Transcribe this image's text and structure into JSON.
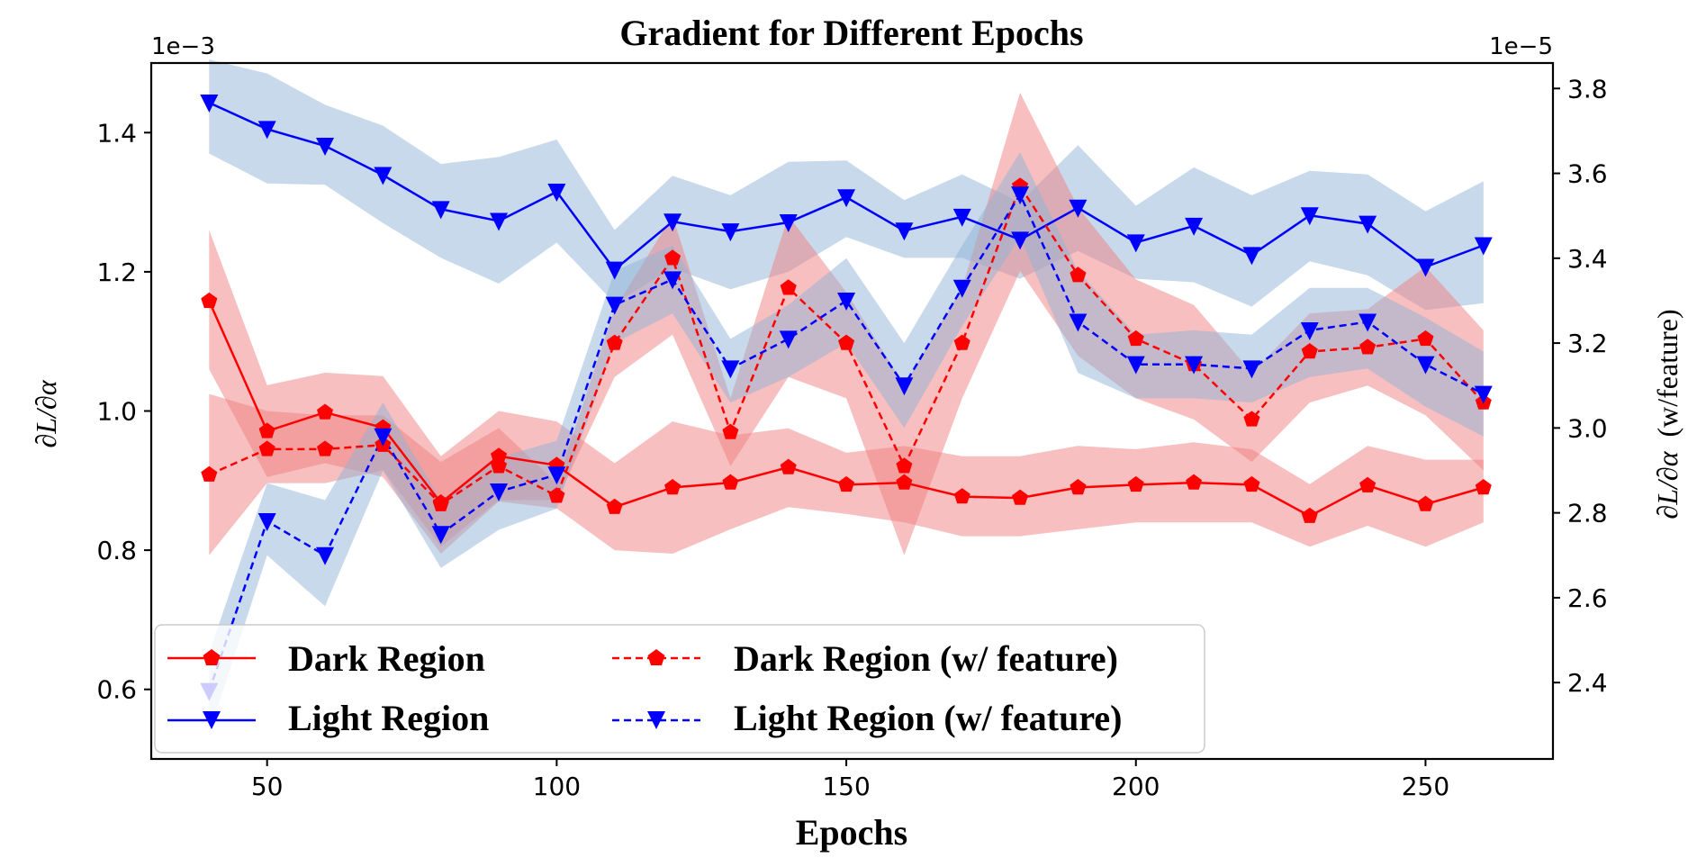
{
  "chart_data": {
    "type": "line",
    "title": "Gradient for Different Epochs",
    "xlabel": "Epochs",
    "ylabel_left": "∂L/∂α",
    "ylabel_right_italic": "∂L/∂α",
    "ylabel_right_suffix": "(w/feature)",
    "left_scale_label": "1e−3",
    "right_scale_label": "1e−5",
    "xlim": [
      30,
      272
    ],
    "ylim_left": [
      0.5,
      1.5
    ],
    "ylim_right": [
      2.22,
      3.86
    ],
    "xticks": [
      50,
      100,
      150,
      200,
      250
    ],
    "yticks_left": [
      "0.6",
      "0.8",
      "1.0",
      "1.2",
      "1.4"
    ],
    "yticks_right": [
      "2.4",
      "2.6",
      "2.8",
      "3.0",
      "3.2",
      "3.4",
      "3.6",
      "3.8"
    ],
    "grid": false,
    "legend_position": "bottom-left",
    "x": [
      40,
      50,
      60,
      70,
      80,
      90,
      100,
      110,
      120,
      130,
      140,
      150,
      160,
      170,
      180,
      190,
      200,
      210,
      220,
      230,
      240,
      250,
      260
    ],
    "series": [
      {
        "name": "Dark Region",
        "axis": "left",
        "color": "#ff0000",
        "band_color": "#f08080",
        "line": "solid",
        "marker": "pentagon",
        "values": [
          1.158,
          0.971,
          0.998,
          0.976,
          0.868,
          0.935,
          0.922,
          0.862,
          0.89,
          0.897,
          0.919,
          0.894,
          0.897,
          0.877,
          0.875,
          0.89,
          0.894,
          0.897,
          0.894,
          0.849,
          0.893,
          0.866,
          0.89
        ],
        "lower": [
          1.06,
          0.905,
          0.925,
          0.905,
          0.795,
          0.87,
          0.86,
          0.8,
          0.795,
          0.83,
          0.862,
          0.852,
          0.84,
          0.82,
          0.82,
          0.83,
          0.84,
          0.84,
          0.84,
          0.805,
          0.835,
          0.805,
          0.84
        ],
        "upper": [
          1.26,
          1.037,
          1.055,
          1.05,
          0.935,
          1.0,
          0.985,
          0.925,
          0.985,
          0.965,
          0.975,
          0.94,
          0.95,
          0.935,
          0.935,
          0.95,
          0.945,
          0.955,
          0.945,
          0.895,
          0.95,
          0.93,
          0.93
        ]
      },
      {
        "name": "Light Region",
        "axis": "left",
        "color": "#0000ff",
        "band_color": "#8fb4d6",
        "line": "solid",
        "marker": "triangle-down",
        "values": [
          1.443,
          1.405,
          1.381,
          1.339,
          1.29,
          1.273,
          1.315,
          1.203,
          1.272,
          1.258,
          1.271,
          1.307,
          1.259,
          1.279,
          1.246,
          1.292,
          1.242,
          1.266,
          1.224,
          1.281,
          1.269,
          1.207,
          1.238
        ],
        "lower": [
          1.37,
          1.327,
          1.325,
          1.27,
          1.22,
          1.183,
          1.242,
          1.155,
          1.205,
          1.175,
          1.2,
          1.25,
          1.22,
          1.22,
          1.19,
          1.23,
          1.19,
          1.185,
          1.15,
          1.215,
          1.195,
          1.145,
          1.155
        ],
        "upper": [
          1.505,
          1.485,
          1.44,
          1.41,
          1.355,
          1.365,
          1.39,
          1.26,
          1.338,
          1.31,
          1.358,
          1.36,
          1.303,
          1.34,
          1.3,
          1.382,
          1.295,
          1.35,
          1.31,
          1.345,
          1.34,
          1.287,
          1.33
        ]
      },
      {
        "name": "Dark Region (w/ feature)",
        "axis": "right",
        "color": "#ff0000",
        "band_color": "#f08080",
        "line": "dashed",
        "marker": "pentagon",
        "values": [
          2.89,
          2.95,
          2.95,
          2.96,
          2.82,
          2.91,
          2.84,
          3.2,
          3.4,
          2.99,
          3.33,
          3.2,
          2.91,
          3.2,
          3.57,
          3.36,
          3.21,
          3.15,
          3.02,
          3.18,
          3.19,
          3.21,
          3.06
        ],
        "lower": [
          2.7,
          2.87,
          2.87,
          2.9,
          2.72,
          2.83,
          2.83,
          3.12,
          3.22,
          2.91,
          3.12,
          3.07,
          2.7,
          3.07,
          3.37,
          3.17,
          3.07,
          3.02,
          2.92,
          3.06,
          3.1,
          3.03,
          2.9
        ],
        "upper": [
          3.08,
          3.04,
          3.03,
          3.03,
          2.92,
          3.0,
          2.87,
          3.28,
          3.5,
          3.07,
          3.5,
          3.32,
          3.1,
          3.33,
          3.79,
          3.52,
          3.35,
          3.29,
          3.13,
          3.27,
          3.28,
          3.38,
          3.23
        ]
      },
      {
        "name": "Light Region (w/ feature)",
        "axis": "right",
        "color": "#0000ff",
        "band_color": "#8fb4d6",
        "line": "dashed",
        "marker": "triangle-down",
        "values": [
          2.38,
          2.78,
          2.7,
          2.98,
          2.75,
          2.85,
          2.89,
          3.29,
          3.35,
          3.14,
          3.21,
          3.3,
          3.1,
          3.33,
          3.55,
          3.25,
          3.15,
          3.15,
          3.14,
          3.23,
          3.25,
          3.15,
          3.08
        ],
        "lower": [
          2.28,
          2.7,
          2.58,
          2.9,
          2.67,
          2.76,
          2.81,
          3.2,
          3.27,
          3.06,
          3.12,
          3.2,
          3.0,
          3.24,
          3.45,
          3.13,
          3.07,
          3.07,
          3.06,
          3.12,
          3.14,
          3.05,
          2.98
        ],
        "upper": [
          2.47,
          2.87,
          2.83,
          3.06,
          2.83,
          2.93,
          2.97,
          3.37,
          3.43,
          3.21,
          3.29,
          3.4,
          3.2,
          3.43,
          3.65,
          3.37,
          3.22,
          3.23,
          3.22,
          3.33,
          3.33,
          3.26,
          3.18
        ]
      }
    ]
  }
}
